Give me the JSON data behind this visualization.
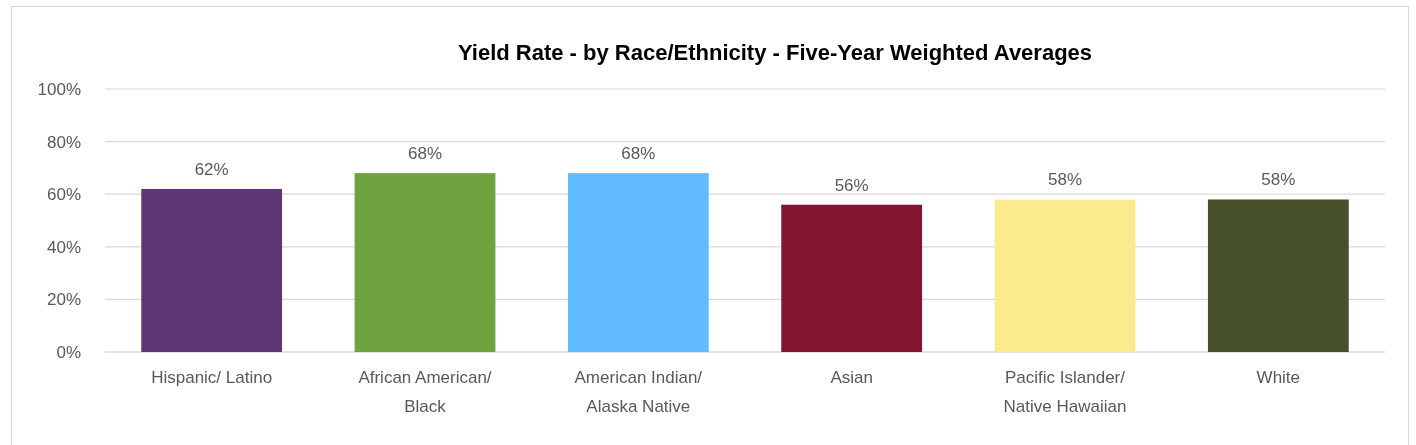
{
  "chart_data": {
    "type": "bar",
    "title": "Yield Rate - by Race/Ethnicity - Five-Year Weighted Averages",
    "categories": [
      "Hispanic/ Latino",
      "African American/ Black",
      "American Indian/ Alaska Native",
      "Asian",
      "Pacific Islander/ Native Hawaiian",
      "White"
    ],
    "values": [
      62,
      68,
      68,
      56,
      58,
      58
    ],
    "colors": [
      "#5f3775",
      "#6ea23f",
      "#63bbff",
      "#83152e",
      "#fbeb8f",
      "#46512b"
    ],
    "value_labels": [
      "62%",
      "68%",
      "68%",
      "56%",
      "58%",
      "58%"
    ],
    "ylim": [
      0,
      100
    ],
    "yticks": [
      {
        "value": 0,
        "label": "0%"
      },
      {
        "value": 20,
        "label": "20%"
      },
      {
        "value": 40,
        "label": "40%"
      },
      {
        "value": 60,
        "label": "60%"
      },
      {
        "value": 80,
        "label": "80%"
      },
      {
        "value": 100,
        "label": "100%"
      }
    ],
    "grid": "y"
  }
}
